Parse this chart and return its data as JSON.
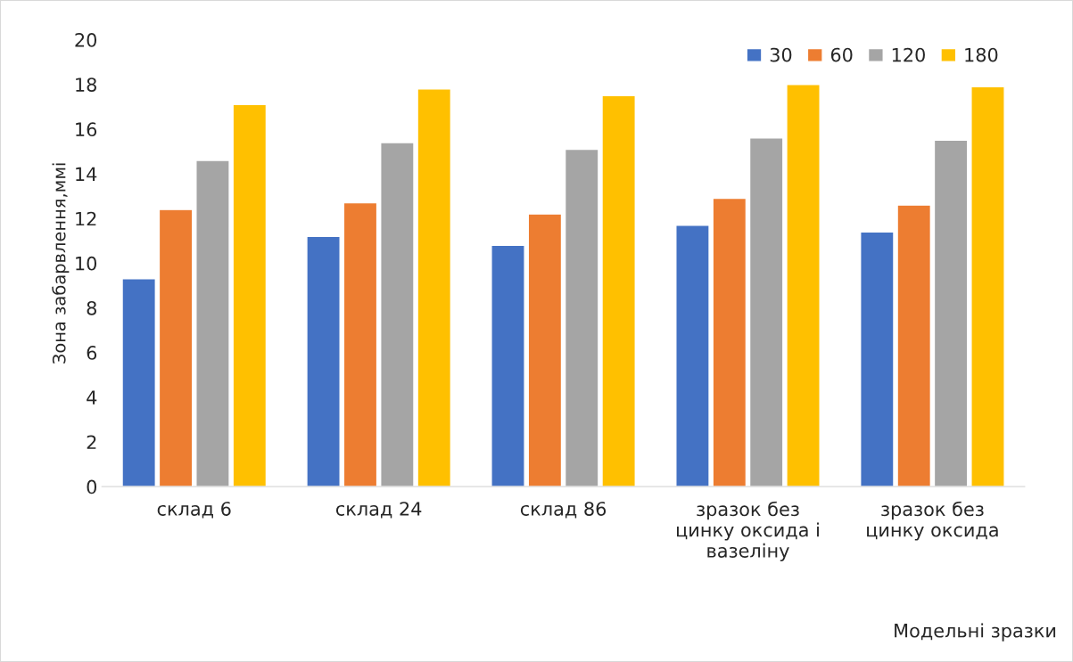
{
  "chart_data": {
    "type": "bar",
    "xlabel": "Модельні зразки",
    "ylabel": "Зона забарвлення,ммі",
    "categories": [
      "склад 6",
      "склад 24",
      "склад 86",
      "зразок без цинку оксида і вазеліну",
      "зразок без цинку оксида"
    ],
    "series": [
      {
        "name": "30",
        "color": "#4472c4",
        "values": [
          9.3,
          11.2,
          10.8,
          11.7,
          11.4
        ]
      },
      {
        "name": "60",
        "color": "#ed7d31",
        "values": [
          12.4,
          12.7,
          12.2,
          12.9,
          12.6
        ]
      },
      {
        "name": "120",
        "color": "#a5a5a5",
        "values": [
          14.6,
          15.4,
          15.1,
          15.6,
          15.5
        ]
      },
      {
        "name": "180",
        "color": "#ffc000",
        "values": [
          17.1,
          17.8,
          17.5,
          18.0,
          17.9
        ]
      }
    ],
    "ylim": [
      0,
      20
    ],
    "yticks": [
      0,
      2,
      4,
      6,
      8,
      10,
      12,
      14,
      16,
      18,
      20
    ],
    "grid": false,
    "legend": "top right"
  }
}
